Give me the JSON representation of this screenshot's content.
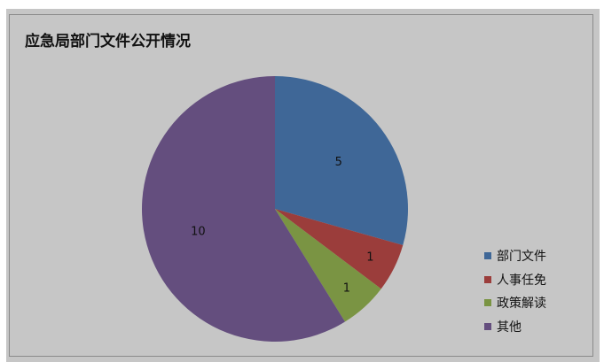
{
  "chart_data": {
    "type": "pie",
    "title": "应急局部门文件公开情况",
    "categories": [
      "部门文件",
      "人事任免",
      "政策解读",
      "其他"
    ],
    "values": [
      5,
      1,
      1,
      10
    ],
    "colors": [
      "#3f6797",
      "#9b3d3b",
      "#7a9443",
      "#644e7e"
    ],
    "start_angle": "top",
    "direction": "clockwise",
    "data_labels": true,
    "legend_position": "right-bottom"
  },
  "background_color": "#c6c6c6"
}
